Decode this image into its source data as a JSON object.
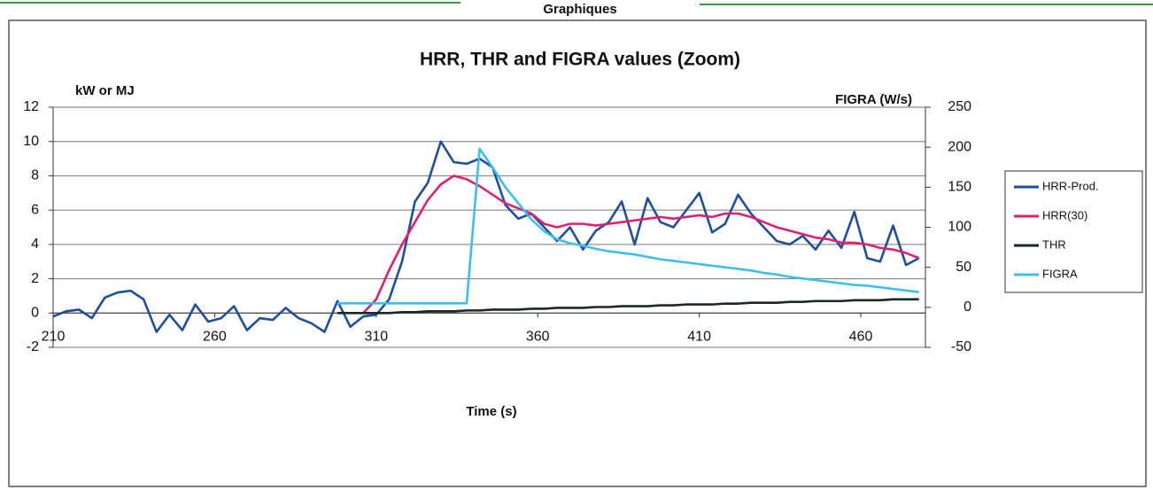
{
  "page_header": "Graphiques",
  "chart_data": {
    "type": "line",
    "title": "HRR, THR and FIGRA values (Zoom)",
    "y_label": "kW or MJ",
    "y2_label": "FIGRA (W/s)",
    "x_label": "Time (s)",
    "legend": "right",
    "grid": true,
    "xlim": [
      210,
      480
    ],
    "xticks": [
      210,
      260,
      310,
      360,
      410,
      460
    ],
    "ylim": [
      -2,
      12
    ],
    "yticks": [
      -2,
      0,
      2,
      4,
      6,
      8,
      10,
      12
    ],
    "y2lim": [
      -50,
      250
    ],
    "y2ticks": [
      -50,
      0,
      50,
      100,
      150,
      200,
      250
    ],
    "x": [
      210,
      214,
      218,
      222,
      226,
      230,
      234,
      238,
      242,
      246,
      250,
      254,
      258,
      262,
      266,
      270,
      274,
      278,
      282,
      286,
      290,
      294,
      298,
      302,
      306,
      310,
      314,
      318,
      322,
      326,
      330,
      334,
      338,
      342,
      346,
      350,
      354,
      358,
      362,
      366,
      370,
      374,
      378,
      382,
      386,
      390,
      394,
      398,
      402,
      406,
      410,
      414,
      418,
      422,
      426,
      430,
      434,
      438,
      442,
      446,
      450,
      454,
      458,
      462,
      466,
      470,
      474,
      478
    ],
    "series": [
      {
        "name": "HRR-Prod.",
        "color": "#1f4e9a",
        "values": [
          -0.2,
          0.1,
          0.2,
          -0.3,
          0.9,
          1.2,
          1.3,
          0.8,
          -1.1,
          -0.1,
          -1.0,
          0.5,
          -0.5,
          -0.3,
          0.4,
          -1.0,
          -0.3,
          -0.4,
          0.3,
          -0.3,
          -0.6,
          -1.1,
          0.7,
          -0.8,
          -0.2,
          -0.1,
          0.8,
          3.0,
          6.5,
          7.6,
          10.0,
          8.8,
          8.7,
          9.0,
          8.5,
          6.3,
          5.5,
          5.8,
          5.0,
          4.2,
          5.0,
          3.7,
          4.8,
          5.3,
          6.5,
          4.0,
          6.7,
          5.3,
          5.0,
          6.0,
          7.0,
          4.7,
          5.2,
          6.9,
          5.8,
          5.0,
          4.2,
          4.0,
          4.5,
          3.7,
          4.8,
          3.8,
          5.9,
          3.2,
          3.0,
          5.1,
          2.8,
          3.2
        ]
      },
      {
        "name": "HRR(30)",
        "color": "#e0206f",
        "values": [
          null,
          null,
          null,
          null,
          null,
          null,
          null,
          null,
          null,
          null,
          null,
          null,
          null,
          null,
          null,
          null,
          null,
          null,
          null,
          null,
          null,
          null,
          null,
          null,
          0,
          0.8,
          2.5,
          4.0,
          5.3,
          6.6,
          7.5,
          8.0,
          7.8,
          7.4,
          6.9,
          6.4,
          6.1,
          5.8,
          5.2,
          5.0,
          5.2,
          5.2,
          5.1,
          5.2,
          5.3,
          5.4,
          5.5,
          5.6,
          5.5,
          5.6,
          5.7,
          5.6,
          5.8,
          5.8,
          5.6,
          5.3,
          5.0,
          4.8,
          4.6,
          4.4,
          4.3,
          4.1,
          4.1,
          4.0,
          3.8,
          3.7,
          3.5,
          3.2
        ]
      },
      {
        "name": "THR",
        "color": "#1a2a22",
        "values": [
          null,
          null,
          null,
          null,
          null,
          null,
          null,
          null,
          null,
          null,
          null,
          null,
          null,
          null,
          null,
          null,
          null,
          null,
          null,
          null,
          null,
          null,
          0,
          0,
          0,
          0,
          0,
          0.05,
          0.05,
          0.1,
          0.1,
          0.1,
          0.15,
          0.15,
          0.2,
          0.2,
          0.2,
          0.25,
          0.25,
          0.3,
          0.3,
          0.3,
          0.35,
          0.35,
          0.4,
          0.4,
          0.4,
          0.45,
          0.45,
          0.5,
          0.5,
          0.5,
          0.55,
          0.55,
          0.6,
          0.6,
          0.6,
          0.65,
          0.65,
          0.7,
          0.7,
          0.7,
          0.75,
          0.75,
          0.75,
          0.8,
          0.8,
          0.8
        ]
      },
      {
        "name": "FIGRA",
        "color": "#3cc0ea",
        "axis": "y2",
        "values": [
          null,
          null,
          null,
          null,
          null,
          null,
          null,
          null,
          null,
          null,
          null,
          null,
          null,
          null,
          null,
          null,
          null,
          null,
          null,
          null,
          null,
          null,
          5,
          5,
          5,
          5,
          5,
          5,
          5,
          5,
          5,
          5,
          5,
          198,
          175,
          150,
          130,
          110,
          95,
          85,
          80,
          77,
          73,
          70,
          68,
          66,
          63,
          60,
          58,
          56,
          54,
          52,
          50,
          48,
          46,
          43,
          41,
          38,
          36,
          34,
          32,
          30,
          28,
          27,
          25,
          23,
          21,
          19
        ]
      }
    ]
  }
}
